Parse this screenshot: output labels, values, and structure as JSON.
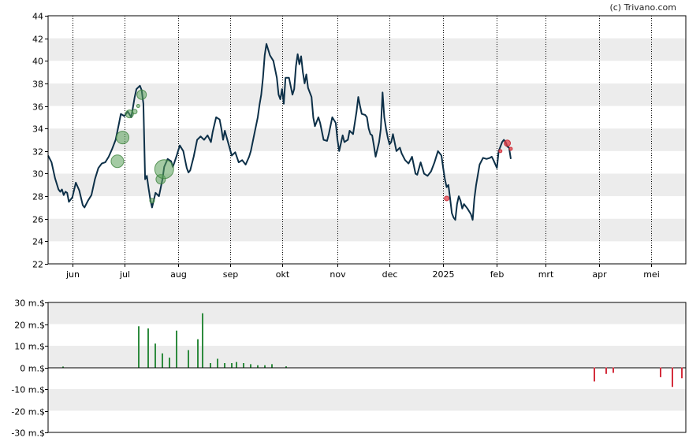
{
  "credit": "(c) Trivano.com",
  "chart_data": [
    {
      "type": "line",
      "grid": true,
      "y_ticks": [
        "22",
        "24",
        "26",
        "28",
        "30",
        "32",
        "34",
        "36",
        "38",
        "40",
        "42",
        "44"
      ],
      "ylim": [
        22,
        44
      ],
      "x_ticks": [
        "jun",
        "jul",
        "aug",
        "sep",
        "okt",
        "nov",
        "dec",
        "2025",
        "feb",
        "mrt",
        "apr",
        "mei"
      ],
      "x_tick_days": [
        8,
        38,
        69,
        99,
        129,
        161,
        191,
        222,
        253,
        281,
        312,
        342
      ],
      "xlim": [
        -6,
        362
      ],
      "line_color": "#0d3048",
      "series": [
        {
          "points": [
            [
              -6,
              31.6
            ],
            [
              -4,
              31.0
            ],
            [
              -2,
              29.6
            ],
            [
              0,
              28.6
            ],
            [
              1,
              28.4
            ],
            [
              2,
              28.6
            ],
            [
              3,
              28.1
            ],
            [
              4,
              28.4
            ],
            [
              5,
              28.3
            ],
            [
              6,
              27.5
            ],
            [
              8,
              27.9
            ],
            [
              10,
              29.2
            ],
            [
              12,
              28.5
            ],
            [
              14,
              27.2
            ],
            [
              15,
              27.0
            ],
            [
              17,
              27.6
            ],
            [
              19,
              28.1
            ],
            [
              21,
              29.5
            ],
            [
              23,
              30.5
            ],
            [
              25,
              30.9
            ],
            [
              27,
              31.0
            ],
            [
              29,
              31.5
            ],
            [
              31,
              32.2
            ],
            [
              33,
              33.0
            ],
            [
              35,
              34.5
            ],
            [
              36,
              35.3
            ],
            [
              38,
              35.1
            ],
            [
              40,
              35.5
            ],
            [
              42,
              35.0
            ],
            [
              44,
              36.8
            ],
            [
              45,
              37.5
            ],
            [
              47,
              37.8
            ],
            [
              48,
              37.4
            ],
            [
              49,
              36.2
            ],
            [
              50,
              29.5
            ],
            [
              51,
              29.8
            ],
            [
              52,
              28.7
            ],
            [
              53,
              27.7
            ],
            [
              54,
              27.0
            ],
            [
              56,
              28.3
            ],
            [
              58,
              28.0
            ],
            [
              60,
              29.5
            ],
            [
              61,
              30.6
            ],
            [
              63,
              31.3
            ],
            [
              65,
              31.1
            ],
            [
              66,
              30.6
            ],
            [
              68,
              31.5
            ],
            [
              70,
              32.5
            ],
            [
              72,
              32.0
            ],
            [
              74,
              30.5
            ],
            [
              75,
              30.1
            ],
            [
              76,
              30.3
            ],
            [
              78,
              31.5
            ],
            [
              80,
              33.0
            ],
            [
              82,
              33.3
            ],
            [
              84,
              33.0
            ],
            [
              86,
              33.4
            ],
            [
              88,
              32.8
            ],
            [
              89,
              33.7
            ],
            [
              91,
              35.0
            ],
            [
              93,
              34.8
            ],
            [
              94,
              34.0
            ],
            [
              95,
              33.0
            ],
            [
              96,
              33.8
            ],
            [
              98,
              32.7
            ],
            [
              100,
              31.6
            ],
            [
              102,
              31.9
            ],
            [
              104,
              31.0
            ],
            [
              106,
              31.2
            ],
            [
              108,
              30.8
            ],
            [
              110,
              31.5
            ],
            [
              111,
              32.0
            ],
            [
              113,
              33.5
            ],
            [
              115,
              35.0
            ],
            [
              116,
              36.1
            ],
            [
              117,
              37.0
            ],
            [
              118,
              38.5
            ],
            [
              119,
              40.5
            ],
            [
              120,
              41.5
            ],
            [
              122,
              40.5
            ],
            [
              124,
              40.0
            ],
            [
              126,
              38.5
            ],
            [
              127,
              37.0
            ],
            [
              128,
              36.6
            ],
            [
              129,
              37.5
            ],
            [
              130,
              36.2
            ],
            [
              131,
              38.5
            ],
            [
              133,
              38.5
            ],
            [
              135,
              37.0
            ],
            [
              136,
              37.5
            ],
            [
              137,
              39.5
            ],
            [
              138,
              40.6
            ],
            [
              139,
              39.7
            ],
            [
              140,
              40.4
            ],
            [
              141,
              39.0
            ],
            [
              142,
              38.0
            ],
            [
              143,
              38.8
            ],
            [
              144,
              37.6
            ],
            [
              145,
              37.2
            ],
            [
              146,
              36.8
            ],
            [
              147,
              35.0
            ],
            [
              148,
              34.2
            ],
            [
              150,
              35.0
            ],
            [
              151,
              34.5
            ],
            [
              153,
              33.0
            ],
            [
              155,
              32.9
            ],
            [
              156,
              33.5
            ],
            [
              158,
              35.0
            ],
            [
              160,
              34.5
            ],
            [
              161,
              33.0
            ],
            [
              162,
              32.0
            ],
            [
              164,
              33.4
            ],
            [
              165,
              32.8
            ],
            [
              166,
              32.9
            ],
            [
              167,
              33.0
            ],
            [
              168,
              33.8
            ],
            [
              170,
              33.5
            ],
            [
              172,
              35.5
            ],
            [
              173,
              36.8
            ],
            [
              174,
              36.0
            ],
            [
              175,
              35.3
            ],
            [
              177,
              35.2
            ],
            [
              178,
              35.0
            ],
            [
              179,
              34.0
            ],
            [
              180,
              33.5
            ],
            [
              181,
              33.4
            ],
            [
              182,
              32.5
            ],
            [
              183,
              31.5
            ],
            [
              185,
              32.8
            ],
            [
              186,
              34.0
            ],
            [
              187,
              37.2
            ],
            [
              188,
              35.0
            ],
            [
              189,
              34.0
            ],
            [
              190,
              33.2
            ],
            [
              191,
              32.6
            ],
            [
              192,
              32.8
            ],
            [
              193,
              33.5
            ],
            [
              195,
              32.0
            ],
            [
              197,
              32.3
            ],
            [
              198,
              31.8
            ],
            [
              200,
              31.2
            ],
            [
              202,
              30.9
            ],
            [
              204,
              31.5
            ],
            [
              206,
              30.0
            ],
            [
              207,
              29.9
            ],
            [
              209,
              31.0
            ],
            [
              211,
              30.0
            ],
            [
              213,
              29.8
            ],
            [
              215,
              30.2
            ],
            [
              217,
              31.0
            ],
            [
              219,
              32.0
            ],
            [
              221,
              31.6
            ],
            [
              222,
              30.5
            ],
            [
              223,
              29.5
            ],
            [
              224,
              28.8
            ],
            [
              225,
              29.0
            ],
            [
              226,
              27.8
            ],
            [
              227,
              26.5
            ],
            [
              228,
              26.1
            ],
            [
              229,
              25.9
            ],
            [
              230,
              27.3
            ],
            [
              231,
              28.0
            ],
            [
              232,
              27.6
            ],
            [
              233,
              26.9
            ],
            [
              234,
              27.3
            ],
            [
              236,
              26.9
            ],
            [
              238,
              26.4
            ],
            [
              239,
              25.9
            ],
            [
              240,
              27.8
            ],
            [
              241,
              29.0
            ],
            [
              242,
              29.9
            ],
            [
              243,
              30.8
            ],
            [
              245,
              31.4
            ],
            [
              247,
              31.3
            ],
            [
              249,
              31.4
            ],
            [
              250,
              31.5
            ],
            [
              251,
              31.2
            ],
            [
              253,
              30.5
            ],
            [
              254,
              32.0
            ],
            [
              256,
              32.8
            ],
            [
              257,
              33.0
            ],
            [
              258,
              32.8
            ],
            [
              259,
              32.4
            ],
            [
              260,
              32.3
            ],
            [
              261,
              31.3
            ]
          ]
        }
      ],
      "bubbles": [
        {
          "x": 34,
          "y": 31.1,
          "r": 8,
          "color": "green"
        },
        {
          "x": 37,
          "y": 33.2,
          "r": 8,
          "color": "green"
        },
        {
          "x": 41,
          "y": 35.3,
          "r": 5,
          "color": "green"
        },
        {
          "x": 44,
          "y": 35.5,
          "r": 3,
          "color": "green"
        },
        {
          "x": 46,
          "y": 36.0,
          "r": 2,
          "color": "green"
        },
        {
          "x": 48,
          "y": 37.0,
          "r": 6,
          "color": "green"
        },
        {
          "x": 54,
          "y": 27.6,
          "r": 3,
          "color": "green"
        },
        {
          "x": 59,
          "y": 29.5,
          "r": 6,
          "color": "green"
        },
        {
          "x": 61,
          "y": 30.4,
          "r": 12,
          "color": "green"
        },
        {
          "x": 224,
          "y": 27.8,
          "r": 3,
          "color": "red"
        },
        {
          "x": 255,
          "y": 32.0,
          "r": 2,
          "color": "red"
        },
        {
          "x": 259,
          "y": 32.7,
          "r": 4,
          "color": "red"
        },
        {
          "x": 261,
          "y": 32.2,
          "r": 2,
          "color": "red"
        }
      ]
    },
    {
      "type": "bar",
      "grid": true,
      "y_ticks": [
        "-30 m.$",
        "-20 m.$",
        "-10 m.$",
        "0 m.$",
        "10 m.$",
        "20 m.$",
        "30 m.$"
      ],
      "ylim": [
        -30,
        30
      ],
      "positive_color": "#2e8b3e",
      "negative_color": "#d42d3c",
      "bars": [
        [
          0,
          0.4
        ],
        [
          32,
          19
        ],
        [
          36,
          18
        ],
        [
          39,
          11
        ],
        [
          42,
          6.5
        ],
        [
          45,
          4.5
        ],
        [
          48,
          17
        ],
        [
          53,
          8
        ],
        [
          57,
          13
        ],
        [
          59,
          25
        ],
        [
          62,
          2
        ],
        [
          65,
          4
        ],
        [
          68,
          2
        ],
        [
          71,
          2
        ],
        [
          73,
          2.5
        ],
        [
          76,
          2
        ],
        [
          79,
          1.5
        ],
        [
          82,
          1
        ],
        [
          85,
          1
        ],
        [
          88,
          1.5
        ],
        [
          94,
          0.5
        ],
        [
          224,
          -6.5
        ],
        [
          229,
          -3
        ],
        [
          232,
          -2.5
        ],
        [
          252,
          -4.5
        ],
        [
          257,
          -9
        ],
        [
          261,
          -5
        ]
      ],
      "bar_day_range": [
        -6,
        263
      ]
    }
  ]
}
